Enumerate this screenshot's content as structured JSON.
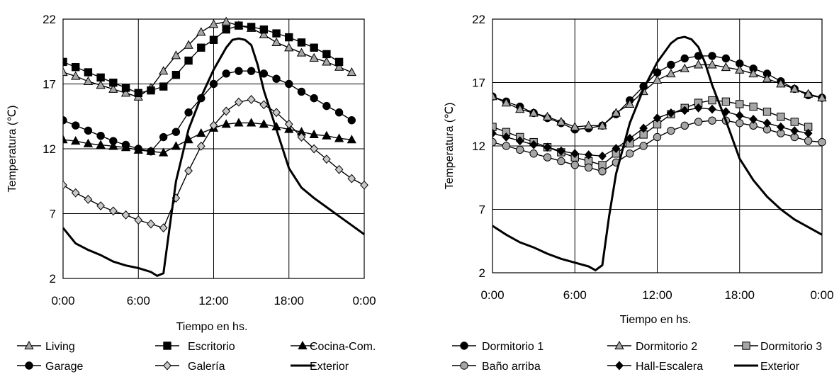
{
  "chart_data": [
    {
      "type": "line",
      "xlabel": "Tiempo en hs.",
      "ylabel": "Temperatura (℃)",
      "ylim": [
        2,
        22
      ],
      "xlim": [
        0,
        24
      ],
      "yticks": [
        "2",
        "7",
        "12",
        "17",
        "22"
      ],
      "xticks": [
        "0:00",
        "6:00",
        "12:00",
        "18:00",
        "0:00"
      ],
      "grid": true,
      "legend": "bottom",
      "legend_rows": [
        [
          "Living",
          "Escritorio",
          "Cocina-Com."
        ],
        [
          "Garage",
          "Galería",
          "Exterior"
        ]
      ],
      "series": [
        {
          "name": "Living",
          "marker": "triangle",
          "color": "#000000",
          "fill": "#a6a6a6",
          "values": [
            17.9,
            17.6,
            17.2,
            16.9,
            16.6,
            16.3,
            16.0,
            16.7,
            18.0,
            19.2,
            20.0,
            21.0,
            21.6,
            21.8,
            21.5,
            21.3,
            20.8,
            20.2,
            19.8,
            19.4,
            19.0,
            18.7,
            18.3,
            17.9
          ]
        },
        {
          "name": "Escritorio",
          "marker": "square",
          "color": "#000000",
          "fill": "#000000",
          "values": [
            18.7,
            18.3,
            17.9,
            17.5,
            17.1,
            16.7,
            16.3,
            16.5,
            16.8,
            17.7,
            18.8,
            19.8,
            20.4,
            21.2,
            21.5,
            21.4,
            21.2,
            20.9,
            20.6,
            20.2,
            19.8,
            19.3,
            18.7
          ]
        },
        {
          "name": "Cocina-Com.",
          "marker": "triangle",
          "color": "#000000",
          "fill": "#000000",
          "values": [
            12.7,
            12.6,
            12.4,
            12.3,
            12.2,
            12.1,
            11.9,
            11.8,
            11.7,
            12.2,
            12.7,
            13.2,
            13.6,
            13.9,
            14.0,
            14.0,
            13.9,
            13.7,
            13.5,
            13.3,
            13.1,
            13.0,
            12.8,
            12.7
          ]
        },
        {
          "name": "Garage",
          "marker": "circle",
          "color": "#000000",
          "fill": "#000000",
          "values": [
            14.2,
            13.8,
            13.4,
            13.0,
            12.6,
            12.3,
            12.0,
            11.8,
            12.9,
            13.3,
            14.8,
            15.9,
            17.0,
            17.8,
            18.0,
            18.0,
            17.8,
            17.4,
            17.0,
            16.4,
            15.9,
            15.3,
            14.8,
            14.2
          ]
        },
        {
          "name": "Galería",
          "marker": "diamond",
          "color": "#000000",
          "fill": "#c8c8c8",
          "values": [
            9.2,
            8.6,
            8.1,
            7.6,
            7.2,
            6.9,
            6.5,
            6.2,
            5.9,
            8.2,
            10.3,
            12.2,
            13.8,
            14.9,
            15.6,
            15.8,
            15.4,
            14.8,
            13.9,
            12.9,
            12.0,
            11.2,
            10.4,
            9.7,
            9.2
          ]
        },
        {
          "name": "Exterior",
          "marker": "none",
          "color": "#000000",
          "fill": "none",
          "x": [
            0,
            1,
            2,
            3,
            4,
            5,
            6,
            7,
            7.5,
            8,
            8.5,
            9,
            10,
            11,
            12,
            13,
            13.5,
            14,
            14.5,
            15,
            15.5,
            16,
            17,
            18,
            19,
            20,
            21,
            22,
            23,
            24
          ],
          "y": [
            5.9,
            4.7,
            4.2,
            3.8,
            3.3,
            3.0,
            2.8,
            2.5,
            2.2,
            2.4,
            6.0,
            9.5,
            13.5,
            16.0,
            18.1,
            19.8,
            20.4,
            20.5,
            20.4,
            20.0,
            18.5,
            16.5,
            13.5,
            10.5,
            9.0,
            8.2,
            7.5,
            6.8,
            6.1,
            5.4
          ]
        }
      ]
    },
    {
      "type": "line",
      "xlabel": "Tiempo en hs.",
      "ylabel": "Temperatura (℃)",
      "ylim": [
        2,
        22
      ],
      "xlim": [
        0,
        24
      ],
      "yticks": [
        "2",
        "7",
        "12",
        "17",
        "22"
      ],
      "xticks": [
        "0:00",
        "6:00",
        "12:00",
        "18:00",
        "0:00"
      ],
      "grid": true,
      "legend": "bottom",
      "legend_rows": [
        [
          "Dormitorio 1",
          "Dormitorio 2",
          "Dormitorio 3"
        ],
        [
          "Baño arriba",
          "Hall-Escalera",
          "Exterior"
        ]
      ],
      "series": [
        {
          "name": "Dormitorio 1",
          "marker": "circle",
          "color": "#000000",
          "fill": "#000000",
          "values": [
            15.9,
            15.5,
            15.1,
            14.6,
            14.2,
            13.8,
            13.3,
            13.4,
            13.6,
            14.5,
            15.6,
            16.7,
            17.8,
            18.4,
            18.9,
            19.1,
            19.1,
            18.9,
            18.5,
            18.1,
            17.7,
            17.1,
            16.5,
            16.0,
            15.8
          ]
        },
        {
          "name": "Dormitorio 2",
          "marker": "triangle",
          "color": "#000000",
          "fill": "#a6a6a6",
          "values": [
            15.9,
            15.4,
            14.9,
            14.6,
            14.3,
            13.9,
            13.5,
            13.6,
            13.6,
            14.6,
            15.3,
            16.3,
            17.2,
            17.7,
            18.1,
            18.4,
            18.4,
            18.2,
            18.0,
            17.7,
            17.3,
            16.9,
            16.5,
            16.1,
            15.8
          ]
        },
        {
          "name": "Dormitorio 3",
          "marker": "square",
          "color": "#000000",
          "fill": "#a6a6a6",
          "values": [
            13.5,
            13.1,
            12.7,
            12.3,
            11.9,
            11.5,
            11.1,
            10.8,
            10.5,
            11.4,
            12.2,
            12.9,
            13.7,
            14.5,
            15.0,
            15.4,
            15.6,
            15.5,
            15.3,
            15.1,
            14.7,
            14.3,
            13.9,
            13.5
          ]
        },
        {
          "name": "Baño arriba",
          "marker": "circle",
          "color": "#000000",
          "fill": "#a6a6a6",
          "values": [
            12.3,
            12.0,
            11.7,
            11.4,
            11.1,
            10.8,
            10.5,
            10.3,
            10.0,
            10.7,
            11.4,
            12.0,
            12.7,
            13.2,
            13.6,
            13.9,
            14.0,
            14.0,
            13.8,
            13.6,
            13.3,
            13.0,
            12.7,
            12.4,
            12.3
          ]
        },
        {
          "name": "Hall-Escalera",
          "marker": "diamond",
          "color": "#000000",
          "fill": "#000000",
          "values": [
            13.0,
            12.7,
            12.4,
            12.1,
            11.9,
            11.6,
            11.4,
            11.3,
            11.2,
            11.8,
            12.6,
            13.4,
            14.2,
            14.6,
            14.8,
            15.0,
            14.9,
            14.7,
            14.4,
            14.1,
            13.8,
            13.5,
            13.2,
            13.0
          ]
        },
        {
          "name": "Exterior",
          "marker": "none",
          "color": "#000000",
          "fill": "none",
          "x": [
            0,
            1,
            2,
            3,
            4,
            5,
            6,
            7,
            7.5,
            8,
            8.5,
            9,
            10,
            11,
            12,
            13,
            13.5,
            14,
            14.5,
            15,
            15.5,
            16,
            17,
            18,
            19,
            20,
            21,
            22,
            23,
            24
          ],
          "y": [
            5.7,
            5.0,
            4.4,
            4.0,
            3.5,
            3.1,
            2.8,
            2.5,
            2.2,
            2.6,
            6.5,
            9.8,
            13.8,
            16.5,
            18.6,
            20.1,
            20.5,
            20.6,
            20.4,
            19.8,
            18.5,
            16.8,
            14.0,
            11.0,
            9.3,
            8.0,
            7.0,
            6.2,
            5.6,
            5.0
          ]
        }
      ]
    }
  ]
}
